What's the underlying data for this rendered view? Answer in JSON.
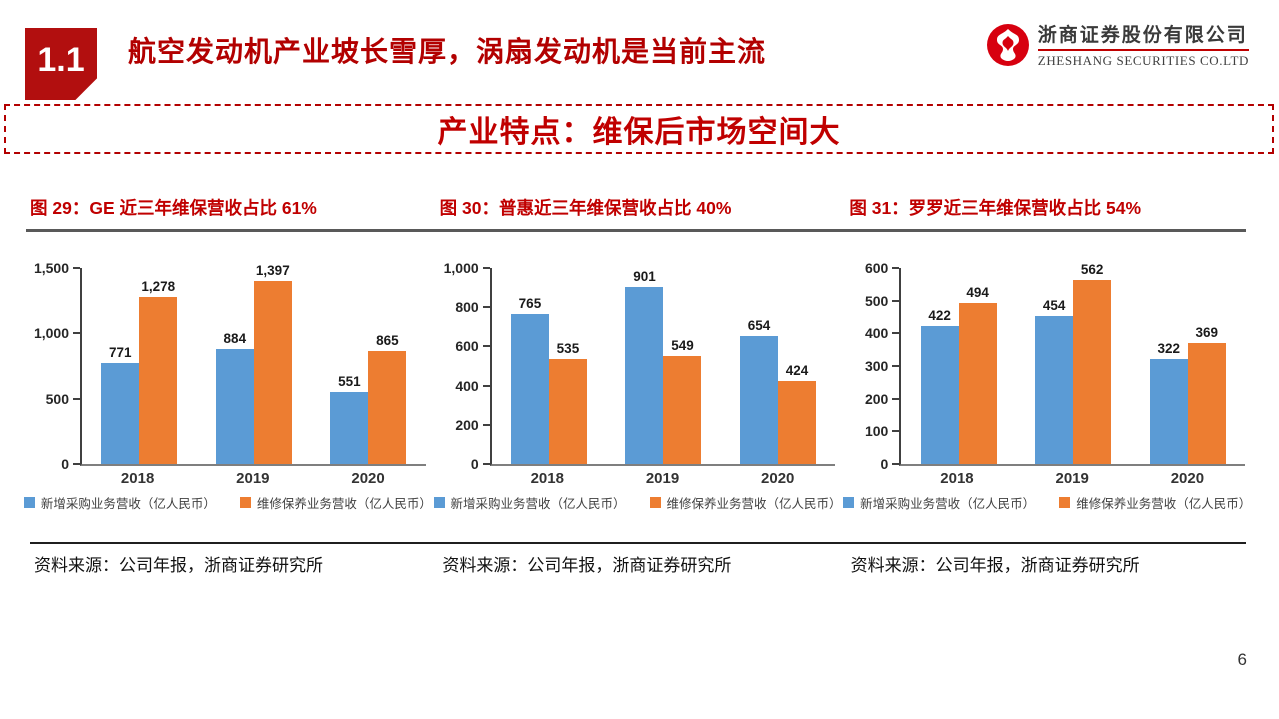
{
  "header": {
    "section_number": "1.1",
    "title": "航空发动机产业坡长雪厚，涡扇发动机是当前主流",
    "logo": {
      "company_cn": "浙商证券股份有限公司",
      "company_en": "ZHESHANG SECURITIES CO.LTD"
    }
  },
  "banner": {
    "title": "产业特点：维保后市场空间大"
  },
  "legend": {
    "series1_label": "新增采购业务营收（亿人民币）",
    "series2_label": "维修保养业务营收（亿人民币）"
  },
  "source_note": "资料来源：公司年报，浙商证券研究所",
  "page_number": "6",
  "colors": {
    "accent_red": "#C00000",
    "badge_red": "#B20F0F",
    "logo_red": "#D7000F",
    "bar_blue": "#5B9BD5",
    "bar_orange": "#ED7D31"
  },
  "chart_data": [
    {
      "type": "bar",
      "title": "图 29：GE 近三年维保营收占比 61%",
      "categories": [
        "2018",
        "2019",
        "2020"
      ],
      "series": [
        {
          "name": "新增采购业务营收（亿人民币）",
          "color": "#5B9BD5",
          "values": [
            771,
            884,
            551
          ]
        },
        {
          "name": "维修保养业务营收（亿人民币）",
          "color": "#ED7D31",
          "values": [
            1278,
            1397,
            865
          ]
        }
      ],
      "ylim": [
        0,
        1500
      ],
      "yticks": [
        0,
        500,
        1000,
        1500
      ],
      "grid": false,
      "legend_position": "bottom",
      "xlabel": "",
      "ylabel": ""
    },
    {
      "type": "bar",
      "title": "图 30：普惠近三年维保营收占比 40%",
      "categories": [
        "2018",
        "2019",
        "2020"
      ],
      "series": [
        {
          "name": "新增采购业务营收（亿人民币）",
          "color": "#5B9BD5",
          "values": [
            765,
            901,
            654
          ]
        },
        {
          "name": "维修保养业务营收（亿人民币）",
          "color": "#ED7D31",
          "values": [
            535,
            549,
            424
          ]
        }
      ],
      "ylim": [
        0,
        1000
      ],
      "yticks": [
        0,
        200,
        400,
        600,
        800,
        1000
      ],
      "grid": false,
      "legend_position": "bottom",
      "xlabel": "",
      "ylabel": ""
    },
    {
      "type": "bar",
      "title": "图 31：罗罗近三年维保营收占比 54%",
      "categories": [
        "2018",
        "2019",
        "2020"
      ],
      "series": [
        {
          "name": "新增采购业务营收（亿人民币）",
          "color": "#5B9BD5",
          "values": [
            422,
            454,
            322
          ]
        },
        {
          "name": "维修保养业务营收（亿人民币）",
          "color": "#ED7D31",
          "values": [
            494,
            562,
            369
          ]
        }
      ],
      "ylim": [
        0,
        600
      ],
      "yticks": [
        0,
        100,
        200,
        300,
        400,
        500,
        600
      ],
      "grid": false,
      "legend_position": "bottom",
      "xlabel": "",
      "ylabel": ""
    }
  ]
}
